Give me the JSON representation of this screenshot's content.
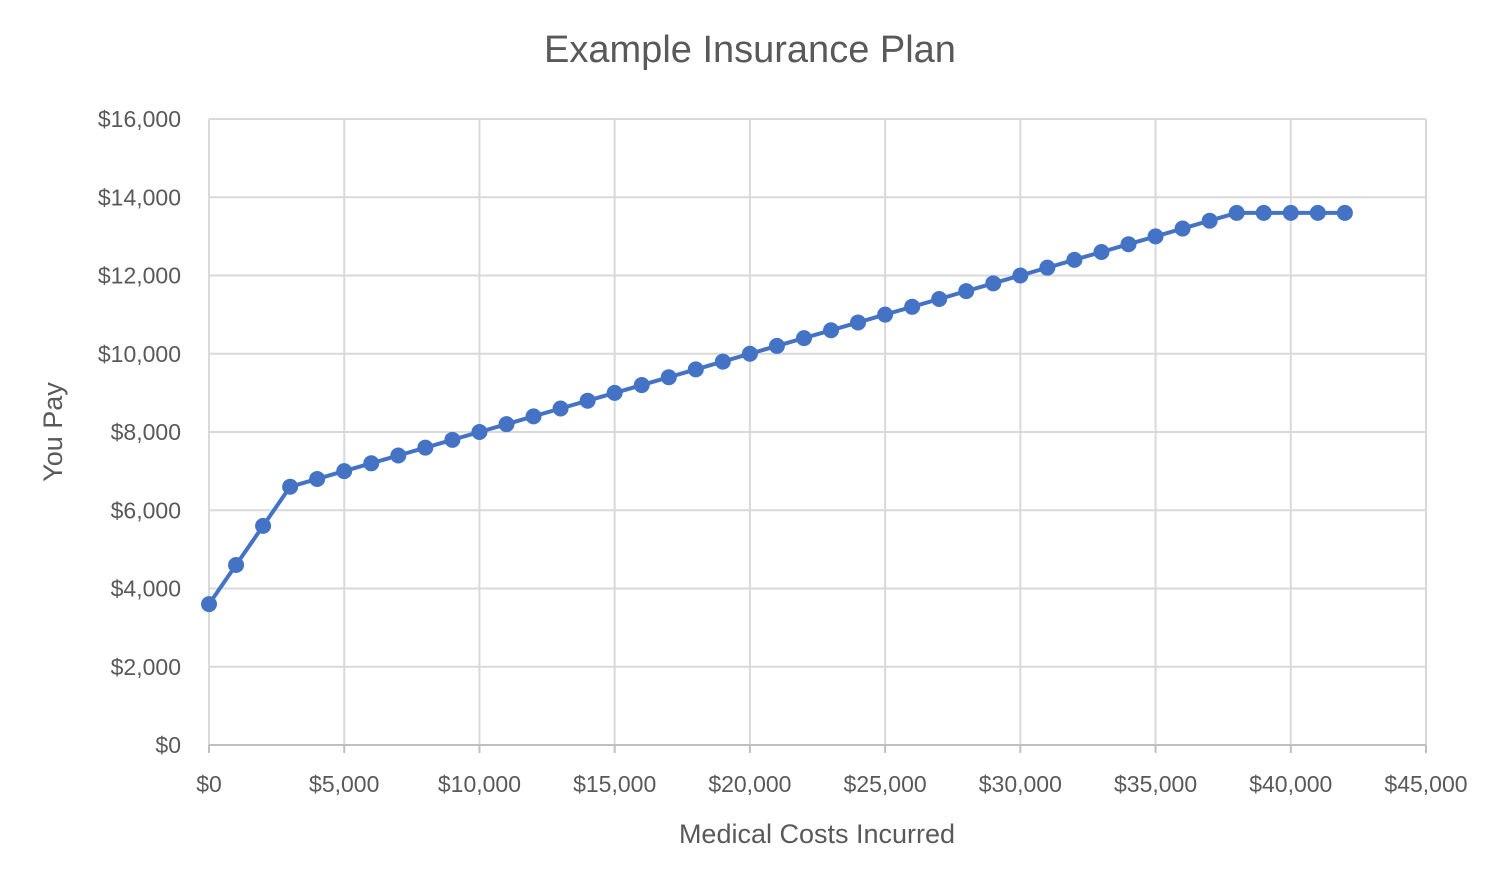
{
  "chart_data": {
    "type": "line",
    "title": "Example Insurance Plan",
    "xlabel": "Medical Costs Incurred",
    "ylabel": "You Pay",
    "xlim": [
      0,
      45000
    ],
    "ylim": [
      0,
      16000
    ],
    "x_ticks": [
      0,
      5000,
      10000,
      15000,
      20000,
      25000,
      30000,
      35000,
      40000,
      45000
    ],
    "y_ticks": [
      0,
      2000,
      4000,
      6000,
      8000,
      10000,
      12000,
      14000,
      16000
    ],
    "x_tick_labels": [
      "$0",
      "$5,000",
      "$10,000",
      "$15,000",
      "$20,000",
      "$25,000",
      "$30,000",
      "$35,000",
      "$40,000",
      "$45,000"
    ],
    "y_tick_labels": [
      "$0",
      "$2,000",
      "$4,000",
      "$6,000",
      "$8,000",
      "$10,000",
      "$12,000",
      "$14,000",
      "$16,000"
    ],
    "grid": true,
    "legend": "none",
    "series": [
      {
        "color": "#4472c4",
        "marker": "circle",
        "x": [
          0,
          1000,
          2000,
          3000,
          4000,
          5000,
          6000,
          7000,
          8000,
          9000,
          10000,
          11000,
          12000,
          13000,
          14000,
          15000,
          16000,
          17000,
          18000,
          19000,
          20000,
          21000,
          22000,
          23000,
          24000,
          25000,
          26000,
          27000,
          28000,
          29000,
          30000,
          31000,
          32000,
          33000,
          34000,
          35000,
          36000,
          37000,
          38000,
          39000,
          40000,
          41000,
          42000
        ],
        "y": [
          3600,
          4600,
          5600,
          6600,
          6800,
          7000,
          7200,
          7400,
          7600,
          7800,
          8000,
          8200,
          8400,
          8600,
          8800,
          9000,
          9200,
          9400,
          9600,
          9800,
          10000,
          10200,
          10400,
          10600,
          10800,
          11000,
          11200,
          11400,
          11600,
          11800,
          12000,
          12200,
          12400,
          12600,
          12800,
          13000,
          13200,
          13400,
          13600,
          13600,
          13600,
          13600,
          13600
        ]
      }
    ]
  }
}
